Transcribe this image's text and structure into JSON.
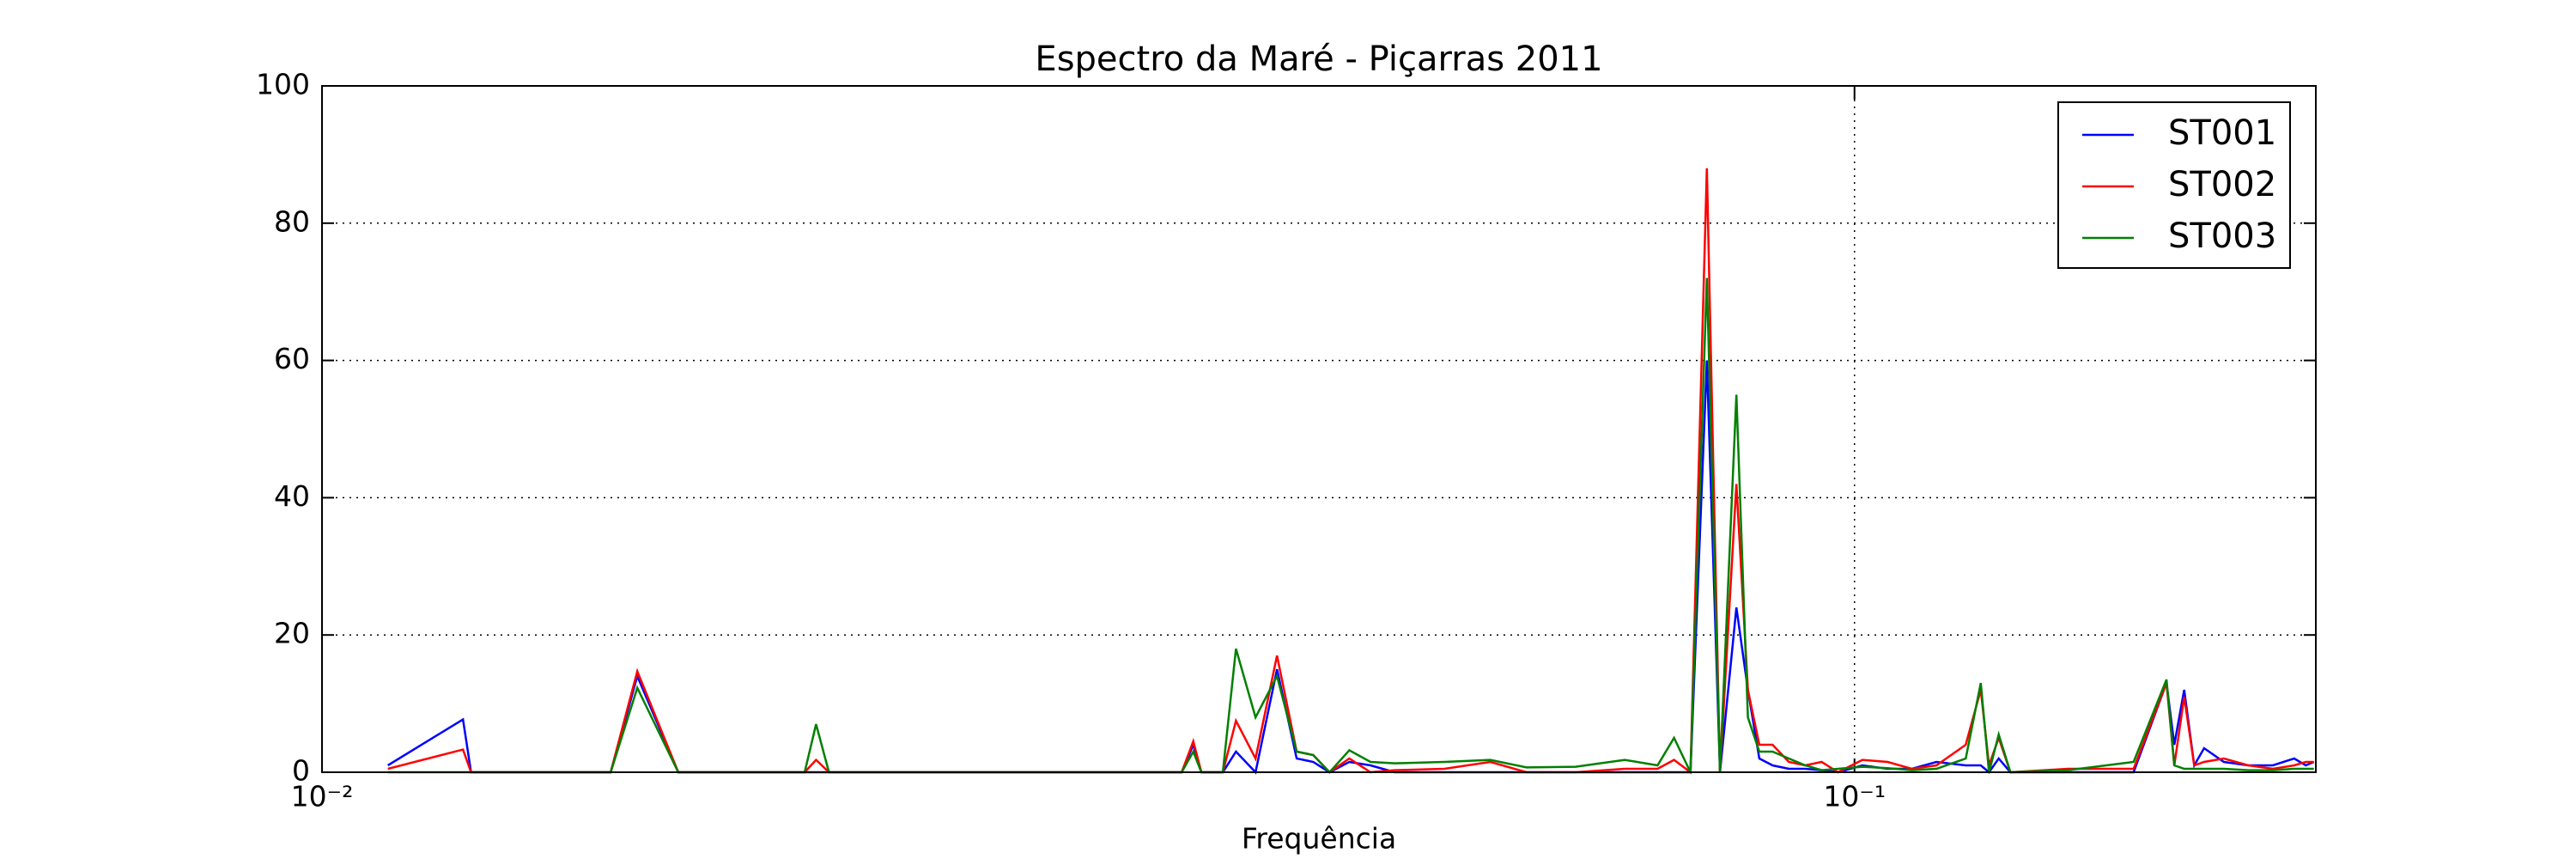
{
  "chart_data": {
    "type": "line",
    "title": "Espectro da Maré - Piçarras 2011",
    "x_label": "Frequência",
    "xscale": "log",
    "xlim": [
      0.01,
      0.2
    ],
    "ylim": [
      0,
      100
    ],
    "xticks": [
      {
        "value": 0.01,
        "label": "10⁻²"
      },
      {
        "value": 0.1,
        "label": "10⁻¹"
      }
    ],
    "yticks": [
      0,
      20,
      40,
      60,
      80,
      100
    ],
    "grid": true,
    "legend": "upper right",
    "x": [
      0.01104,
      0.01236,
      0.01251,
      0.01543,
      0.01606,
      0.01708,
      0.02065,
      0.02101,
      0.02142,
      0.03639,
      0.03703,
      0.03748,
      0.03871,
      0.03948,
      0.04066,
      0.04199,
      0.04325,
      0.04434,
      0.04544,
      0.04681,
      0.04833,
      0.05012,
      0.054,
      0.05786,
      0.06109,
      0.06577,
      0.07081,
      0.07439,
      0.07625,
      0.07816,
      0.08011,
      0.0817,
      0.08374,
      0.0852,
      0.08668,
      0.08841,
      0.09061,
      0.09287,
      0.09519,
      0.09756,
      0.1012,
      0.1051,
      0.109,
      0.1131,
      0.1182,
      0.1209,
      0.1224,
      0.1242,
      0.1264,
      0.1378,
      0.1521,
      0.1598,
      0.1617,
      0.1641,
      0.1666,
      0.1691,
      0.1742,
      0.1807,
      0.1875,
      0.1936,
      0.197,
      0.1994
    ],
    "series": [
      {
        "name": "ST001",
        "color": "#0000ff",
        "values": [
          1,
          7.7,
          0,
          0,
          14,
          0,
          0,
          0,
          0,
          0,
          4,
          0,
          0,
          3,
          0,
          15,
          2,
          1.5,
          0,
          1.5,
          1,
          0,
          0,
          0,
          0,
          0,
          0,
          0,
          0,
          0,
          60,
          0,
          24,
          12,
          2,
          1,
          0.5,
          0.5,
          0.3,
          0,
          1,
          0.5,
          0.5,
          1.5,
          1,
          1,
          0,
          2,
          0,
          0,
          0,
          13,
          4,
          12,
          1,
          3.5,
          1.5,
          1,
          1,
          2,
          1,
          1.5
        ]
      },
      {
        "name": "ST002",
        "color": "#ff0000",
        "values": [
          0.5,
          3.3,
          0,
          0,
          14.7,
          0,
          0,
          1.8,
          0,
          0,
          4.5,
          0,
          0,
          7.5,
          2,
          17,
          3,
          2.5,
          0,
          2,
          0,
          0.3,
          0.5,
          1.5,
          0,
          0,
          0.5,
          0.5,
          1.8,
          0,
          88,
          0,
          42,
          12,
          4,
          4,
          1.5,
          1,
          1.5,
          0,
          1.8,
          1.5,
          0.5,
          1,
          4,
          12,
          1,
          5,
          0,
          0.5,
          0.5,
          13,
          1,
          11,
          1,
          1.5,
          2,
          1,
          0.5,
          1,
          1.5,
          1.5
        ]
      },
      {
        "name": "ST003",
        "color": "#008000",
        "values": [
          0,
          0,
          0,
          0,
          12.3,
          0,
          0,
          7,
          0,
          0,
          3,
          0,
          0,
          18,
          8,
          14,
          3,
          2.5,
          0,
          3.2,
          1.5,
          1.3,
          1.5,
          1.8,
          0.7,
          0.8,
          1.8,
          1,
          5,
          0,
          72,
          0,
          55,
          8,
          3,
          3,
          2,
          1,
          0.3,
          0.5,
          0.8,
          0.6,
          0.3,
          0.5,
          2,
          13,
          0,
          5.5,
          0,
          0.3,
          1.5,
          13.5,
          1,
          0.5,
          0.5,
          0.5,
          0.5,
          0.3,
          0.3,
          0.5,
          0.5,
          0.5
        ]
      }
    ]
  }
}
